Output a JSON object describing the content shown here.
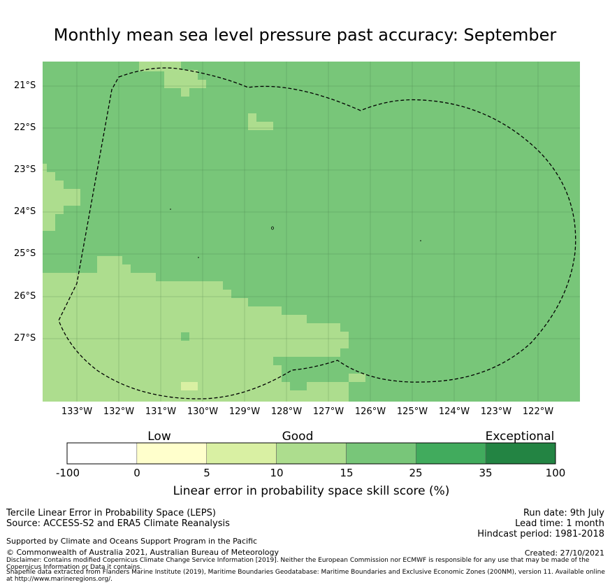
{
  "title": "Monthly mean sea level pressure past accuracy: September",
  "map": {
    "y_ticks": [
      "21°S",
      "22°S",
      "23°S",
      "24°S",
      "25°S",
      "26°S",
      "27°S"
    ],
    "x_ticks": [
      "133°W",
      "132°W",
      "131°W",
      "130°W",
      "129°W",
      "128°W",
      "127°W",
      "126°W",
      "125°W",
      "124°W",
      "123°W",
      "122°W"
    ],
    "colors": {
      "low": "#ffffcc",
      "good_light": "#d9f0a3",
      "good": "#addd8e",
      "good_dark": "#78c679",
      "very_good": "#41ab5d",
      "exceptional": "#238443",
      "boundary": "#000000"
    }
  },
  "colorbar": {
    "categories": [
      "Low",
      "Good",
      "Exceptional"
    ],
    "ticks": [
      "-100",
      "0",
      "5",
      "10",
      "15",
      "25",
      "35",
      "100"
    ],
    "colors": [
      "#ffffff",
      "#ffffcc",
      "#d9f0a3",
      "#addd8e",
      "#78c679",
      "#41ab5d",
      "#238443"
    ],
    "label": "Linear error in probability space skill score (%)"
  },
  "footer": {
    "left_line1": "Tercile Linear Error in Probability Space (LEPS)",
    "left_line2": "Source: ACCESS-S2 and ERA5 Climate Reanalysis",
    "supported": "Supported by Climate and Oceans Support Program in the Pacific",
    "copyright": "© Commonwealth of Australia 2021, Australian Bureau of Meteorology",
    "run_date": "Run date: 9th July",
    "lead_time": "Lead time: 1 month",
    "hindcast": "Hindcast period: 1981-2018",
    "created": "Created: 27/10/2021",
    "disclaimer": "Disclaimer: Contains modified Copernicus Climate Change Service Information [2019]. Neither the European Commission nor ECMWF is responsible for any use that may be made of the Copernicus Information or Data it contains.",
    "shapefile": "Shapefile data extracted from Flanders Marine Institute (2019), Maritime Boundaries Geodatabase: Maritime Boundaries and Exclusive Economic Zones (200NM), version 11. Available online at http://www.marineregions.org/."
  }
}
